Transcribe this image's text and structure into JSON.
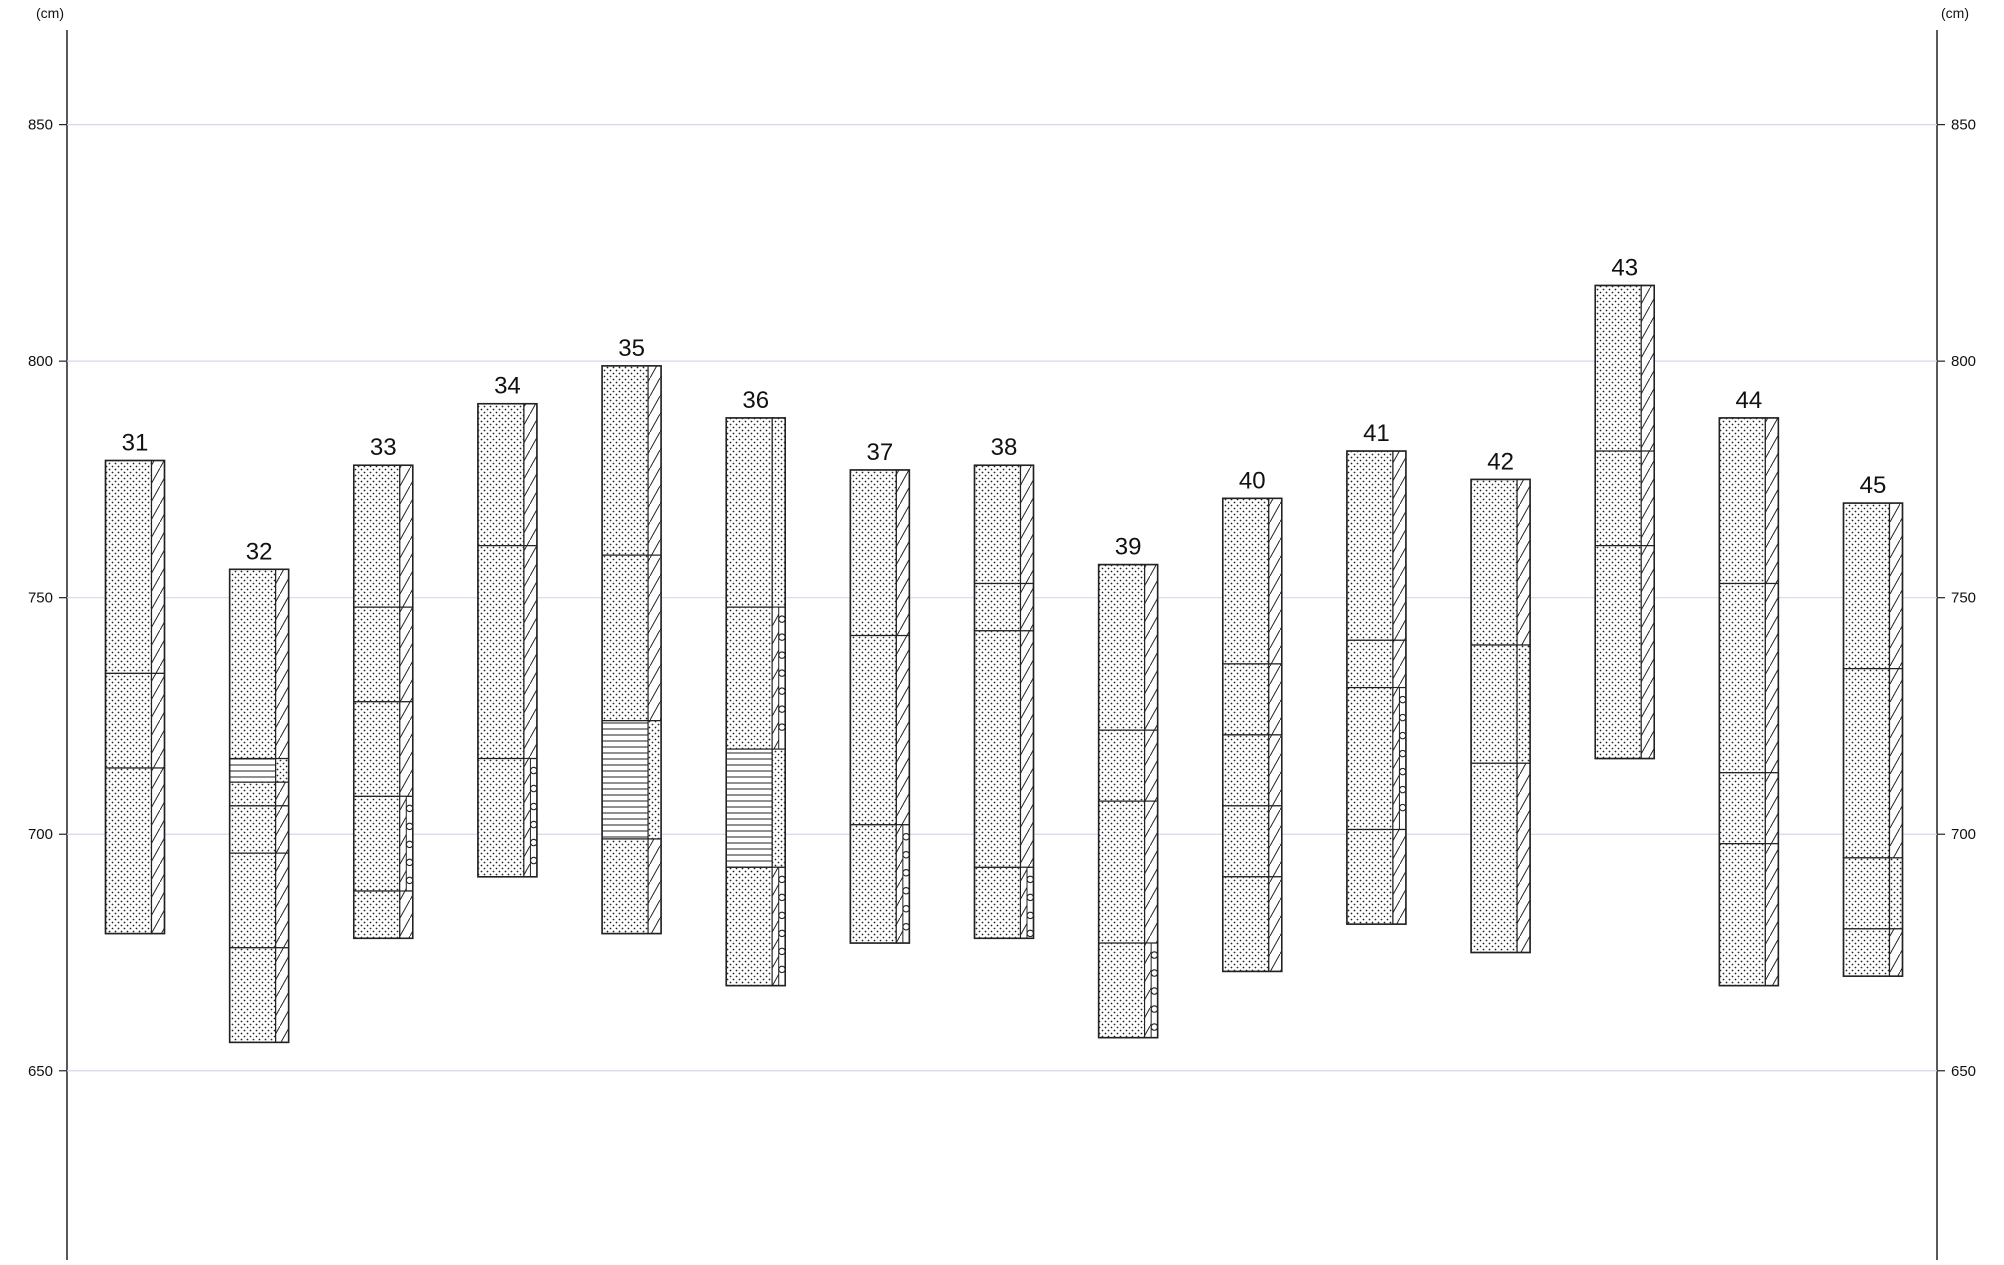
{
  "unit_label_left": "(cm)",
  "unit_label_right": "(cm)",
  "axis": {
    "min": 610,
    "max": 870,
    "ticks": [
      850,
      800,
      750,
      700,
      650
    ]
  },
  "colors": {
    "grid": "#d6d6f0",
    "line": "#222222",
    "fill": "#ffffff"
  },
  "patterns": {
    "dots": "fine-sand",
    "hlines": "silt-laminae",
    "diag": "hatched-strip",
    "circles": "gravel-strip"
  },
  "columns": [
    {
      "label": "31",
      "top": 779,
      "bottom": 679,
      "layers": [
        {
          "from": 779,
          "to": 734,
          "pattern": "dots",
          "edge": "diag"
        },
        {
          "from": 734,
          "to": 714,
          "pattern": "dots",
          "edge": "diag"
        },
        {
          "from": 714,
          "to": 679,
          "pattern": "dots",
          "edge": "diag",
          "edge2": "circles"
        }
      ]
    },
    {
      "label": "32",
      "top": 756,
      "bottom": 656,
      "layers": [
        {
          "from": 756,
          "to": 716,
          "pattern": "dots",
          "edge": "diag"
        },
        {
          "from": 716,
          "to": 711,
          "pattern": "hlines",
          "edge": "dots"
        },
        {
          "from": 711,
          "to": 706,
          "pattern": "dots",
          "edge": "diag"
        },
        {
          "from": 706,
          "to": 696,
          "pattern": "dots",
          "edge": "diag"
        },
        {
          "from": 696,
          "to": 676,
          "pattern": "dots",
          "edge": "diag"
        },
        {
          "from": 676,
          "to": 656,
          "pattern": "dots",
          "edge": "diag"
        }
      ]
    },
    {
      "label": "33",
      "top": 778,
      "bottom": 678,
      "layers": [
        {
          "from": 778,
          "to": 748,
          "pattern": "dots",
          "edge": "diag"
        },
        {
          "from": 748,
          "to": 728,
          "pattern": "dots",
          "edge": "diag"
        },
        {
          "from": 728,
          "to": 708,
          "pattern": "dots",
          "edge": "diag"
        },
        {
          "from": 708,
          "to": 688,
          "pattern": "dots",
          "edge": "circles"
        },
        {
          "from": 688,
          "to": 678,
          "pattern": "dots",
          "edge": "diag"
        }
      ]
    },
    {
      "label": "34",
      "top": 791,
      "bottom": 691,
      "layers": [
        {
          "from": 791,
          "to": 761,
          "pattern": "dots",
          "edge": "diag"
        },
        {
          "from": 761,
          "to": 716,
          "pattern": "dots",
          "edge": "diag"
        },
        {
          "from": 716,
          "to": 691,
          "pattern": "dots",
          "edge": "circles"
        }
      ]
    },
    {
      "label": "35",
      "top": 799,
      "bottom": 679,
      "layers": [
        {
          "from": 799,
          "to": 759,
          "pattern": "dots",
          "edge": "diag"
        },
        {
          "from": 759,
          "to": 724,
          "pattern": "dots",
          "edge": "diag"
        },
        {
          "from": 724,
          "to": 699,
          "pattern": "hlines",
          "edge": "dots"
        },
        {
          "from": 699,
          "to": 679,
          "pattern": "dots",
          "edge": "diag"
        }
      ]
    },
    {
      "label": "36",
      "top": 788,
      "bottom": 668,
      "layers": [
        {
          "from": 788,
          "to": 748,
          "pattern": "dots",
          "edge": "dots"
        },
        {
          "from": 748,
          "to": 718,
          "pattern": "dots",
          "edge": "circles"
        },
        {
          "from": 718,
          "to": 693,
          "pattern": "hlines",
          "edge": "dots"
        },
        {
          "from": 693,
          "to": 668,
          "pattern": "dots",
          "edge": "circles"
        }
      ]
    },
    {
      "label": "37",
      "top": 777,
      "bottom": 677,
      "layers": [
        {
          "from": 777,
          "to": 742,
          "pattern": "dots",
          "edge": "diag"
        },
        {
          "from": 742,
          "to": 702,
          "pattern": "dots",
          "edge": "diag"
        },
        {
          "from": 702,
          "to": 677,
          "pattern": "dots",
          "edge": "circles"
        }
      ]
    },
    {
      "label": "38",
      "top": 778,
      "bottom": 678,
      "layers": [
        {
          "from": 778,
          "to": 753,
          "pattern": "dots",
          "edge": "diag"
        },
        {
          "from": 753,
          "to": 743,
          "pattern": "dots",
          "edge": "diag"
        },
        {
          "from": 743,
          "to": 693,
          "pattern": "dots",
          "edge": "diag"
        },
        {
          "from": 693,
          "to": 678,
          "pattern": "dots",
          "edge": "circles"
        }
      ]
    },
    {
      "label": "39",
      "top": 757,
      "bottom": 657,
      "layers": [
        {
          "from": 757,
          "to": 722,
          "pattern": "dots",
          "edge": "diag"
        },
        {
          "from": 722,
          "to": 707,
          "pattern": "dots",
          "edge": "diag"
        },
        {
          "from": 707,
          "to": 677,
          "pattern": "dots",
          "edge": "diag"
        },
        {
          "from": 677,
          "to": 657,
          "pattern": "dots",
          "edge": "circles"
        }
      ]
    },
    {
      "label": "40",
      "top": 771,
      "bottom": 671,
      "layers": [
        {
          "from": 771,
          "to": 736,
          "pattern": "dots",
          "edge": "diag"
        },
        {
          "from": 736,
          "to": 721,
          "pattern": "dots",
          "edge": "diag"
        },
        {
          "from": 721,
          "to": 706,
          "pattern": "dots",
          "edge": "diag"
        },
        {
          "from": 706,
          "to": 691,
          "pattern": "dots",
          "edge": "diag"
        },
        {
          "from": 691,
          "to": 671,
          "pattern": "dots",
          "edge": "diag"
        }
      ]
    },
    {
      "label": "41",
      "top": 781,
      "bottom": 681,
      "layers": [
        {
          "from": 781,
          "to": 741,
          "pattern": "dots",
          "edge": "diag"
        },
        {
          "from": 741,
          "to": 731,
          "pattern": "dots",
          "edge": "diag"
        },
        {
          "from": 731,
          "to": 701,
          "pattern": "dots",
          "edge": "circles"
        },
        {
          "from": 701,
          "to": 681,
          "pattern": "dots",
          "edge": "diag"
        }
      ]
    },
    {
      "label": "42",
      "top": 775,
      "bottom": 675,
      "layers": [
        {
          "from": 775,
          "to": 740,
          "pattern": "dots",
          "edge": "diag"
        },
        {
          "from": 740,
          "to": 715,
          "pattern": "dots",
          "edge": "dots"
        },
        {
          "from": 715,
          "to": 675,
          "pattern": "dots",
          "edge": "diag"
        }
      ]
    },
    {
      "label": "43",
      "top": 816,
      "bottom": 716,
      "layers": [
        {
          "from": 816,
          "to": 781,
          "pattern": "dots",
          "edge": "diag"
        },
        {
          "from": 781,
          "to": 761,
          "pattern": "dots",
          "edge": "diag"
        },
        {
          "from": 761,
          "to": 716,
          "pattern": "dots",
          "edge": "diag"
        }
      ]
    },
    {
      "label": "44",
      "top": 788,
      "bottom": 668,
      "layers": [
        {
          "from": 788,
          "to": 753,
          "pattern": "dots",
          "edge": "diag"
        },
        {
          "from": 753,
          "to": 713,
          "pattern": "dots",
          "edge": "diag"
        },
        {
          "from": 713,
          "to": 698,
          "pattern": "dots",
          "edge": "diag"
        },
        {
          "from": 698,
          "to": 668,
          "pattern": "dots",
          "edge": "diag"
        }
      ]
    },
    {
      "label": "45",
      "top": 770,
      "bottom": 670,
      "layers": [
        {
          "from": 770,
          "to": 735,
          "pattern": "dots",
          "edge": "diag"
        },
        {
          "from": 735,
          "to": 695,
          "pattern": "dots",
          "edge": "diag"
        },
        {
          "from": 695,
          "to": 680,
          "pattern": "dots",
          "edge": "dots"
        },
        {
          "from": 680,
          "to": 670,
          "pattern": "dots",
          "edge": "diag"
        }
      ]
    }
  ]
}
